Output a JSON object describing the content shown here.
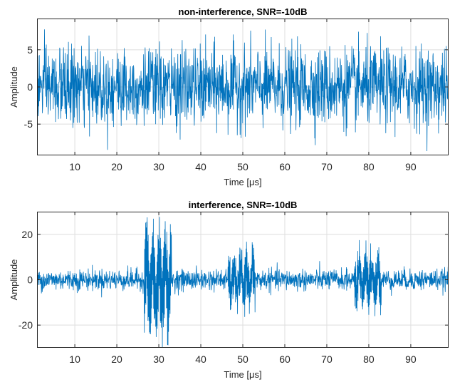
{
  "chart_data": [
    {
      "type": "line",
      "title": "non-interference, SNR=-10dB",
      "xlabel": "Time [μs]",
      "ylabel": "Amplitude",
      "xlim": [
        1,
        99
      ],
      "ylim": [
        -9.2,
        9.2
      ],
      "xticks": [
        10,
        20,
        30,
        40,
        50,
        60,
        70,
        80,
        90
      ],
      "yticks": [
        -5,
        0,
        5
      ],
      "grid": true,
      "series": [
        {
          "color": "#0072BD",
          "noise_std": 2.6,
          "bursts": []
        }
      ]
    },
    {
      "type": "line",
      "title": "interference, SNR=-10dB",
      "xlabel": "Time [μs]",
      "ylabel": "Amplitude",
      "xlim": [
        1,
        99
      ],
      "ylim": [
        -30,
        30
      ],
      "xticks": [
        10,
        20,
        30,
        40,
        50,
        60,
        70,
        80,
        90
      ],
      "yticks": [
        -20,
        0,
        20
      ],
      "grid": true,
      "series": [
        {
          "color": "#0072BD",
          "noise_std": 2.3,
          "bursts": [
            {
              "start": 26.5,
              "end": 33,
              "amplitude": 28
            },
            {
              "start": 46.5,
              "end": 53,
              "amplitude": 14
            },
            {
              "start": 76.5,
              "end": 83,
              "amplitude": 15
            }
          ]
        }
      ]
    }
  ]
}
